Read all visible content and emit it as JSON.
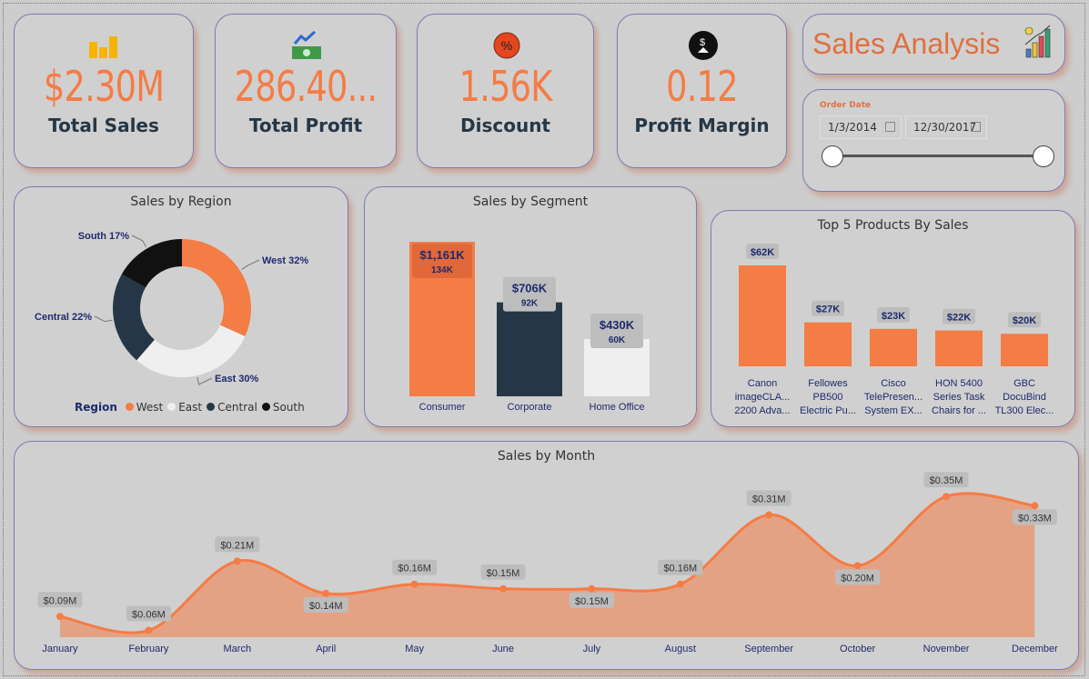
{
  "kpis": [
    {
      "value": "$2.30M",
      "label": "Total Sales",
      "icon": "coins-icon"
    },
    {
      "value": "286.40...",
      "label": "Total Profit",
      "icon": "money-trend-icon"
    },
    {
      "value": "1.56K",
      "label": "Discount",
      "icon": "percent-badge-icon"
    },
    {
      "value": "0.12",
      "label": "Profit Margin",
      "icon": "dollar-down-icon"
    }
  ],
  "title": {
    "text": "Sales Analysis",
    "icon": "bar-chart-icon"
  },
  "date_filter": {
    "label": "Order Date",
    "start": "1/3/2014",
    "end": "12/30/2017",
    "range_fraction": [
      0,
      1
    ]
  },
  "colors": {
    "accent": "#f47c45",
    "dark": "#253746",
    "light": "#efefef",
    "black": "#111111"
  },
  "chart_data": [
    {
      "type": "pie",
      "title": "Sales by Region",
      "legend_title": "Region",
      "legend_position": "bottom",
      "categories": [
        "West",
        "East",
        "Central",
        "South"
      ],
      "values": [
        32,
        30,
        22,
        17
      ],
      "labels": [
        "West 32%",
        "East 30%",
        "Central 22%",
        "South 17%"
      ],
      "colors": [
        "#f47c45",
        "#efefef",
        "#253746",
        "#111111"
      ]
    },
    {
      "type": "bar",
      "title": "Sales by Segment",
      "categories": [
        "Consumer",
        "Corporate",
        "Home Office"
      ],
      "values": [
        1161,
        706,
        430
      ],
      "labels": [
        "$1,161K",
        "$706K",
        "$430K"
      ],
      "sublabels": [
        "134K",
        "92K",
        "60K"
      ],
      "colors": [
        "#f47c45",
        "#253746",
        "#efefef"
      ]
    },
    {
      "type": "bar",
      "title": "Top 5 Products By Sales",
      "categories": [
        [
          "Canon",
          "imageCLA...",
          "2200 Adva..."
        ],
        [
          "Fellowes",
          "PB500",
          "Electric Pu..."
        ],
        [
          "Cisco",
          "TelePresen...",
          "System EX..."
        ],
        [
          "HON 5400",
          "Series Task",
          "Chairs for ..."
        ],
        [
          "GBC",
          "DocuBind",
          "TL300 Elec..."
        ]
      ],
      "values": [
        62,
        27,
        23,
        22,
        20
      ],
      "labels": [
        "$62K",
        "$27K",
        "$23K",
        "$22K",
        "$20K"
      ]
    },
    {
      "type": "area",
      "title": "Sales by Month",
      "categories": [
        "January",
        "February",
        "March",
        "April",
        "May",
        "June",
        "July",
        "August",
        "September",
        "October",
        "November",
        "December"
      ],
      "values": [
        0.09,
        0.06,
        0.21,
        0.14,
        0.16,
        0.15,
        0.15,
        0.16,
        0.31,
        0.2,
        0.35,
        0.33
      ],
      "labels": [
        "$0.09M",
        "$0.06M",
        "$0.21M",
        "$0.14M",
        "$0.16M",
        "$0.15M",
        "$0.15M",
        "$0.16M",
        "$0.31M",
        "$0.20M",
        "$0.35M",
        "$0.33M"
      ]
    }
  ]
}
